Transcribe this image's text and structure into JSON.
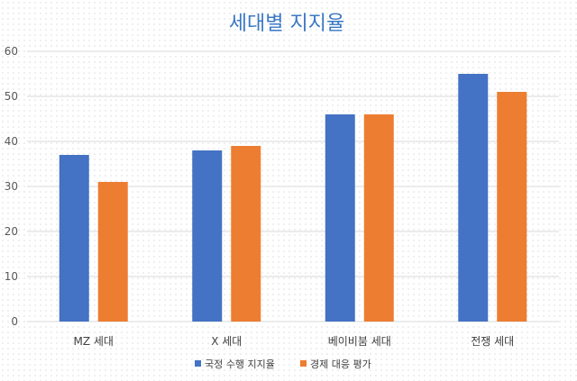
{
  "chart_data": {
    "type": "bar",
    "title": "세대별 지지율",
    "xlabel": "",
    "ylabel": "",
    "categories": [
      "MZ 세대",
      "X 세대",
      "베이비붐 세대",
      "전쟁 세대"
    ],
    "series": [
      {
        "name": "국정 수행 지지율",
        "color": "#4472c4",
        "values": [
          37,
          38,
          46,
          55
        ]
      },
      {
        "name": "경제 대응 평가",
        "color": "#ed7d31",
        "values": [
          31,
          39,
          46,
          51
        ]
      }
    ],
    "ylim": [
      0,
      60
    ],
    "yticks": [
      0,
      10,
      20,
      30,
      40,
      50,
      60
    ],
    "grid": true,
    "legend_position": "bottom"
  }
}
